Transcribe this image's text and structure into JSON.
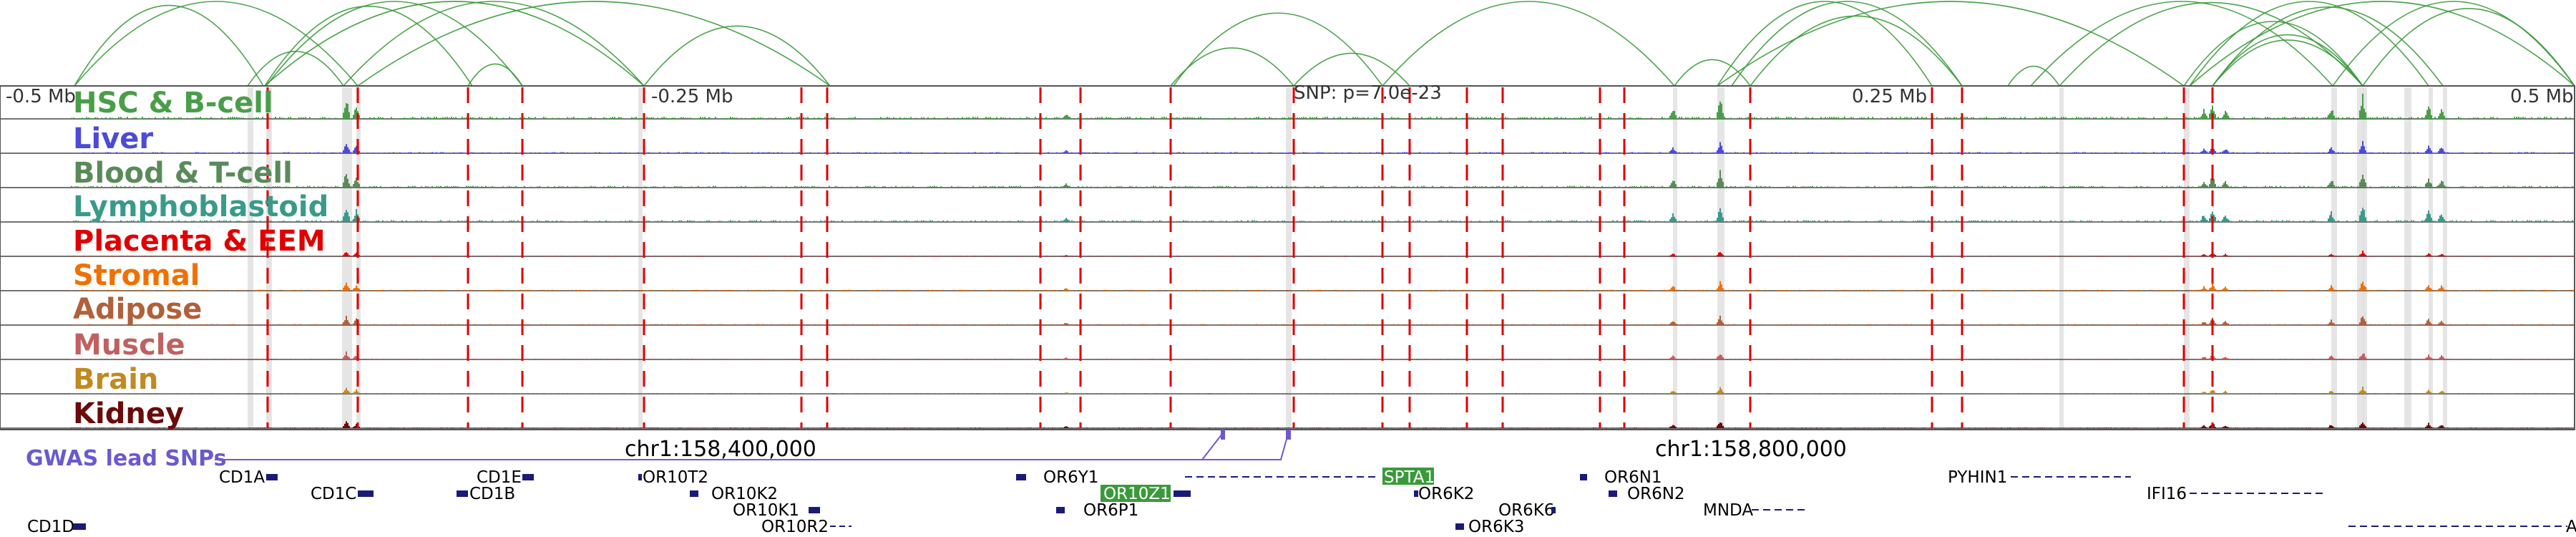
{
  "axis": {
    "ticks": [
      "-0.5 Mb",
      "-0.25 Mb",
      "0.25 Mb",
      "0.5 Mb"
    ],
    "snp_label": "SNP: p=7.0e-23"
  },
  "tracks": [
    {
      "label": "HSC & B-cell",
      "color": "#4a9e4a"
    },
    {
      "label": "Liver",
      "color": "#4b4bd6"
    },
    {
      "label": "Blood & T-cell",
      "color": "#5a8a5a"
    },
    {
      "label": "Lymphoblastoid",
      "color": "#3a9a8a"
    },
    {
      "label": "Placenta & EEM",
      "color": "#e00000"
    },
    {
      "label": "Stromal",
      "color": "#f07000"
    },
    {
      "label": "Adipose",
      "color": "#b0603a"
    },
    {
      "label": "Muscle",
      "color": "#c06060"
    },
    {
      "label": "Brain",
      "color": "#c08a20"
    },
    {
      "label": "Kidney",
      "color": "#6a0a0a"
    }
  ],
  "gwas": {
    "label": "GWAS lead SNPs",
    "color": "#6a5acd"
  },
  "coordinates": [
    "chr1:158,400,000",
    "chr1:158,800,000"
  ],
  "genes": [
    "CD1A",
    "CD1C",
    "CD1E",
    "CD1B",
    "CD1D",
    "OR10T2",
    "OR10K2",
    "OR10K1",
    "OR10R2",
    "OR6Y1",
    "OR10Z1",
    "OR6P1",
    "SPTA1",
    "OR6K2",
    "OR6K6",
    "OR6K3",
    "OR6N1",
    "OR6N2",
    "MNDA",
    "PYHIN1",
    "IFI16",
    "A"
  ],
  "highlighted_genes": [
    "OR10Z1",
    "SPTA1"
  ],
  "colors": {
    "loop": "#3a9a3a",
    "highlight_gene": "#3a9a3a",
    "gene_body": "#1a1a7a",
    "red_line": "#dd0000"
  }
}
